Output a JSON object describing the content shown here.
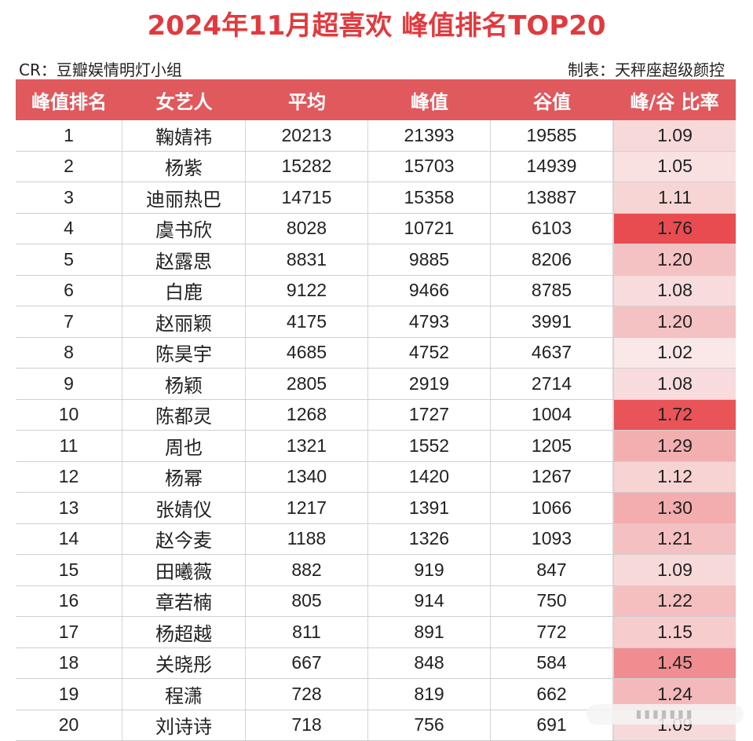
{
  "title": "2024年11月超喜欢 峰值排名TOP20",
  "credit_left": "CR：豆瓣娱情明灯小组",
  "credit_right": "制表：天秤座超级颜控",
  "headers": [
    "峰值排名",
    "女艺人",
    "平均",
    "峰值",
    "谷值",
    "峰/谷 比率"
  ],
  "colors": {
    "title": "#e03a3e",
    "header_bg": "#e0595d",
    "header_text": "#ffffff"
  },
  "rows": [
    {
      "rank": "1",
      "name": "鞠婧祎",
      "avg": "20213",
      "peak": "21393",
      "valley": "19585",
      "ratio": "1.09",
      "ratio_value": 1.09
    },
    {
      "rank": "2",
      "name": "杨紫",
      "avg": "15282",
      "peak": "15703",
      "valley": "14939",
      "ratio": "1.05",
      "ratio_value": 1.05
    },
    {
      "rank": "3",
      "name": "迪丽热巴",
      "avg": "14715",
      "peak": "15358",
      "valley": "13887",
      "ratio": "1.11",
      "ratio_value": 1.11
    },
    {
      "rank": "4",
      "name": "虞书欣",
      "avg": "8028",
      "peak": "10721",
      "valley": "6103",
      "ratio": "1.76",
      "ratio_value": 1.76
    },
    {
      "rank": "5",
      "name": "赵露思",
      "avg": "8831",
      "peak": "9885",
      "valley": "8206",
      "ratio": "1.20",
      "ratio_value": 1.2
    },
    {
      "rank": "6",
      "name": "白鹿",
      "avg": "9122",
      "peak": "9466",
      "valley": "8785",
      "ratio": "1.08",
      "ratio_value": 1.08
    },
    {
      "rank": "7",
      "name": "赵丽颖",
      "avg": "4175",
      "peak": "4793",
      "valley": "3991",
      "ratio": "1.20",
      "ratio_value": 1.2
    },
    {
      "rank": "8",
      "name": "陈昊宇",
      "avg": "4685",
      "peak": "4752",
      "valley": "4637",
      "ratio": "1.02",
      "ratio_value": 1.02
    },
    {
      "rank": "9",
      "name": "杨颖",
      "avg": "2805",
      "peak": "2919",
      "valley": "2714",
      "ratio": "1.08",
      "ratio_value": 1.08
    },
    {
      "rank": "10",
      "name": "陈都灵",
      "avg": "1268",
      "peak": "1727",
      "valley": "1004",
      "ratio": "1.72",
      "ratio_value": 1.72
    },
    {
      "rank": "11",
      "name": "周也",
      "avg": "1321",
      "peak": "1552",
      "valley": "1205",
      "ratio": "1.29",
      "ratio_value": 1.29
    },
    {
      "rank": "12",
      "name": "杨幂",
      "avg": "1340",
      "peak": "1420",
      "valley": "1267",
      "ratio": "1.12",
      "ratio_value": 1.12
    },
    {
      "rank": "13",
      "name": "张婧仪",
      "avg": "1217",
      "peak": "1391",
      "valley": "1066",
      "ratio": "1.30",
      "ratio_value": 1.3
    },
    {
      "rank": "14",
      "name": "赵今麦",
      "avg": "1188",
      "peak": "1326",
      "valley": "1093",
      "ratio": "1.21",
      "ratio_value": 1.21
    },
    {
      "rank": "15",
      "name": "田曦薇",
      "avg": "882",
      "peak": "919",
      "valley": "847",
      "ratio": "1.09",
      "ratio_value": 1.09
    },
    {
      "rank": "16",
      "name": "章若楠",
      "avg": "805",
      "peak": "914",
      "valley": "750",
      "ratio": "1.22",
      "ratio_value": 1.22
    },
    {
      "rank": "17",
      "name": "杨超越",
      "avg": "811",
      "peak": "891",
      "valley": "772",
      "ratio": "1.15",
      "ratio_value": 1.15
    },
    {
      "rank": "18",
      "name": "关晓彤",
      "avg": "667",
      "peak": "848",
      "valley": "584",
      "ratio": "1.45",
      "ratio_value": 1.45
    },
    {
      "rank": "19",
      "name": "程潇",
      "avg": "728",
      "peak": "819",
      "valley": "662",
      "ratio": "1.24",
      "ratio_value": 1.24
    },
    {
      "rank": "20",
      "name": "刘诗诗",
      "avg": "718",
      "peak": "756",
      "valley": "691",
      "ratio": "1.09",
      "ratio_value": 1.09
    }
  ]
}
